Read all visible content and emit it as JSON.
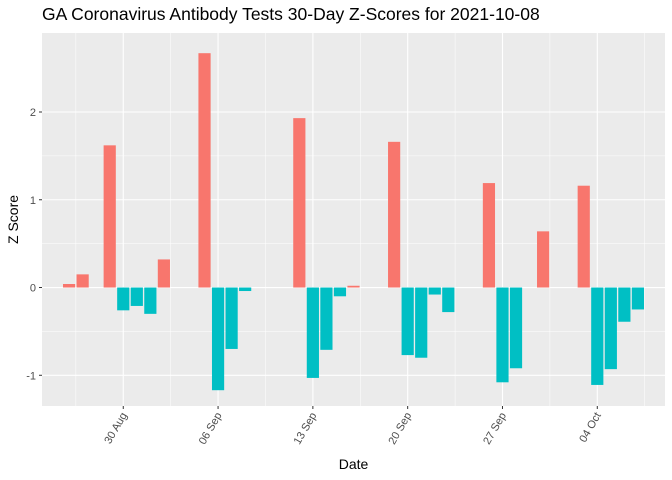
{
  "chart_data": {
    "type": "bar",
    "title": "GA Coronavirus Antibody Tests 30-Day Z-Scores for 2021-10-08",
    "xlabel": "Date",
    "ylabel": "Z Score",
    "ylim": [
      -1.35,
      2.9
    ],
    "xlim": [
      "2021-08-24",
      "2021-10-09"
    ],
    "y_ticks": [
      -1,
      0,
      1,
      2
    ],
    "x_ticks": [
      {
        "date": "2021-08-30",
        "label": "30 Aug"
      },
      {
        "date": "2021-09-06",
        "label": "06 Sep"
      },
      {
        "date": "2021-09-13",
        "label": "13 Sep"
      },
      {
        "date": "2021-09-20",
        "label": "20 Sep"
      },
      {
        "date": "2021-09-27",
        "label": "27 Sep"
      },
      {
        "date": "2021-10-04",
        "label": "04 Oct"
      }
    ],
    "grid": true,
    "colors": {
      "positive": "#F8766D",
      "negative": "#00BFC4",
      "panel": "#EBEBEB",
      "grid": "#FFFFFF"
    },
    "points": [
      {
        "date": "2021-08-26",
        "value": 0.04
      },
      {
        "date": "2021-08-27",
        "value": 0.15
      },
      {
        "date": "2021-08-29",
        "value": 1.62
      },
      {
        "date": "2021-08-30",
        "value": -0.26
      },
      {
        "date": "2021-08-31",
        "value": -0.21
      },
      {
        "date": "2021-09-01",
        "value": -0.3
      },
      {
        "date": "2021-09-02",
        "value": 0.32
      },
      {
        "date": "2021-09-05",
        "value": 2.67
      },
      {
        "date": "2021-09-06",
        "value": -1.17
      },
      {
        "date": "2021-09-07",
        "value": -0.7
      },
      {
        "date": "2021-09-08",
        "value": -0.04
      },
      {
        "date": "2021-09-12",
        "value": 1.93
      },
      {
        "date": "2021-09-13",
        "value": -1.03
      },
      {
        "date": "2021-09-14",
        "value": -0.71
      },
      {
        "date": "2021-09-15",
        "value": -0.1
      },
      {
        "date": "2021-09-16",
        "value": 0.02
      },
      {
        "date": "2021-09-19",
        "value": 1.66
      },
      {
        "date": "2021-09-20",
        "value": -0.77
      },
      {
        "date": "2021-09-21",
        "value": -0.8
      },
      {
        "date": "2021-09-22",
        "value": -0.08
      },
      {
        "date": "2021-09-23",
        "value": -0.28
      },
      {
        "date": "2021-09-26",
        "value": 1.19
      },
      {
        "date": "2021-09-27",
        "value": -1.08
      },
      {
        "date": "2021-09-28",
        "value": -0.92
      },
      {
        "date": "2021-09-30",
        "value": 0.64
      },
      {
        "date": "2021-10-03",
        "value": 1.16
      },
      {
        "date": "2021-10-04",
        "value": -1.11
      },
      {
        "date": "2021-10-05",
        "value": -0.93
      },
      {
        "date": "2021-10-06",
        "value": -0.39
      },
      {
        "date": "2021-10-07",
        "value": -0.25
      }
    ]
  }
}
